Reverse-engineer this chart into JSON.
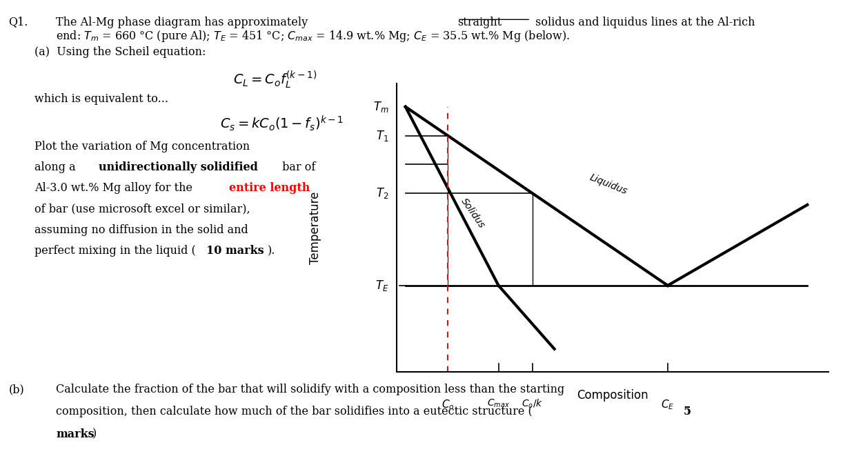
{
  "bg_color": "#ffffff",
  "fig_width": 12.51,
  "fig_height": 6.74,
  "title_line1": "Q1.  The Al-Mg phase diagram has approximately ",
  "title_underline": "straight",
  "title_line1b": " solidus and liquidus lines at the Al-rich",
  "title_line2": "       end: $T_m$ = 660 °C (pure Al); $T_E$ = 451 °C; $C_{max}$ = 14.9 wt.% Mg; $C_E$ = 35.5 wt.% Mg (below).",
  "part_a_label": "(a)  Using the Scheil equation:",
  "eq1": "$C_L = C_o f_L^{(k-1)}$",
  "eq1_equiv": "which is equivalent to...",
  "eq2": "$C_s = kC_o(1-f_s)^{k-1}$",
  "part_a_text1": "Plot the variation of Mg concentration",
  "part_a_text2": "along a ",
  "part_a_text2b": "unidirectionally solidified",
  "part_a_text2c": " bar of",
  "part_a_text3": "Al-3.0 wt.% Mg alloy for the ",
  "part_a_text3b": "entire length",
  "part_a_text3c": "",
  "part_a_text4": "of bar (use microsoft excel or similar),",
  "part_a_text5": "assuming no diffusion in the solid and",
  "part_a_text6": "perfect mixing in the liquid (",
  "part_a_text6b": "10 marks",
  "part_a_text6c": ").",
  "part_b_line1": "(b)  Calculate the fraction of the bar that will solidify with a composition less than the starting",
  "part_b_line2": "      composition, then calculate how much of the bar solidifies into a eutectic structure (",
  "part_b_line2b": "5",
  "part_b_line3": "      ",
  "part_b_line3b": "marks",
  "part_b_line3c": ")"
}
